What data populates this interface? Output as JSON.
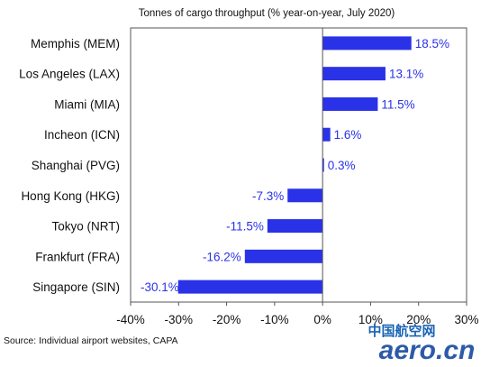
{
  "chart_data": {
    "type": "bar",
    "orientation": "horizontal",
    "title": "Tonnes of cargo throughput (% year-on-year, July 2020)",
    "categories": [
      "Memphis (MEM)",
      "Los Angeles (LAX)",
      "Miami (MIA)",
      "Incheon (ICN)",
      "Shanghai (PVG)",
      "Hong Kong (HKG)",
      "Tokyo (NRT)",
      "Frankfurt (FRA)",
      "Singapore (SIN)"
    ],
    "values": [
      18.5,
      13.1,
      11.5,
      1.6,
      0.3,
      -7.3,
      -11.5,
      -16.2,
      -30.1
    ],
    "data_labels": [
      "18.5%",
      "13.1%",
      "11.5%",
      "1.6%",
      "0.3%",
      "-7.3%",
      "-11.5%",
      "-16.2%",
      "-30.1%"
    ],
    "xlim": [
      -40,
      30
    ],
    "x_ticks": [
      -40,
      -30,
      -20,
      -10,
      0,
      10,
      20,
      30
    ],
    "x_tick_labels": [
      "-40%",
      "-30%",
      "-20%",
      "-10%",
      "0%",
      "10%",
      "20%",
      "30%"
    ],
    "grid": false,
    "colors": {
      "bar": "#2a32e8",
      "data_label": "#2a32e8",
      "axis": "#555555"
    },
    "source": "Source: Individual airport websites, CAPA"
  },
  "watermark": {
    "top_text": "中国航空网",
    "main_text": "aero.cn"
  }
}
